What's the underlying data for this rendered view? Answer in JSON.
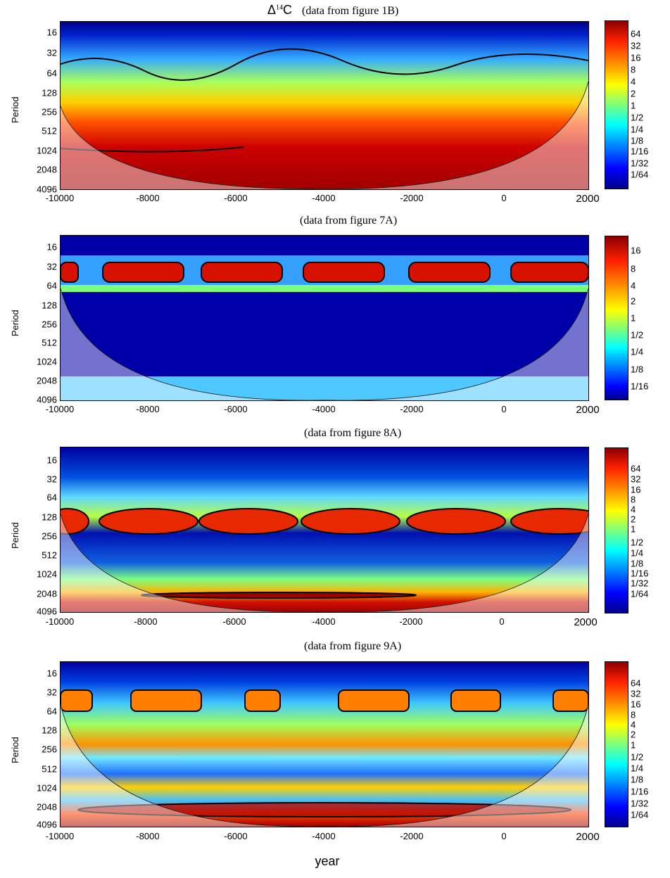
{
  "chart_data": [
    {
      "type": "heatmap",
      "title_prefix": "Δ",
      "title_sup": "14",
      "title_suffix": "C",
      "title": "(data from figure 1B)",
      "ylabel": "Period",
      "xlim": [
        -10000,
        2000
      ],
      "x_ticks": [
        "-10000",
        "-8000",
        "-6000",
        "-4000",
        "-2000",
        "0",
        "2000"
      ],
      "y_ticks": [
        "16",
        "32",
        "64",
        "128",
        "256",
        "512",
        "1024",
        "2048",
        "4096"
      ],
      "colorbar_ticks": [
        "64",
        "32",
        "16",
        "8",
        "4",
        "2",
        "1",
        "1/2",
        "1/4",
        "1/8",
        "1/16",
        "1/32",
        "1/64"
      ]
    },
    {
      "type": "heatmap",
      "title": "(data from figure 7A)",
      "ylabel": "Period",
      "xlim": [
        -10000,
        2000
      ],
      "x_ticks": [
        "-10000",
        "-8000",
        "-6000",
        "-4000",
        "-2000",
        "0",
        "2000"
      ],
      "y_ticks": [
        "16",
        "32",
        "64",
        "128",
        "256",
        "512",
        "1024",
        "2048",
        "4096"
      ],
      "colorbar_ticks": [
        "16",
        "8",
        "4",
        "2",
        "1",
        "1/2",
        "1/4",
        "1/8",
        "1/16"
      ]
    },
    {
      "type": "heatmap",
      "title": "(data from figure 8A)",
      "ylabel": "Period",
      "xlim": [
        -10000,
        2000
      ],
      "x_ticks": [
        "-10000",
        "-8000",
        "-6000",
        "-4000",
        "-2000",
        "0",
        "2000"
      ],
      "y_ticks": [
        "16",
        "32",
        "64",
        "128",
        "256",
        "512",
        "1024",
        "2048",
        "4096"
      ],
      "colorbar_ticks": [
        "64",
        "32",
        "16",
        "8",
        "4",
        "2",
        "1",
        "1/2",
        "1/4",
        "1/8",
        "1/16",
        "1/32",
        "1/64"
      ]
    },
    {
      "type": "heatmap",
      "title": "(data from figure 9A)",
      "ylabel": "Period",
      "xlim": [
        -10000,
        2000
      ],
      "x_ticks": [
        "-10000",
        "-8000",
        "-6000",
        "-4000",
        "-2000",
        "0",
        "2000"
      ],
      "y_ticks": [
        "16",
        "32",
        "64",
        "128",
        "256",
        "512",
        "1024",
        "2048",
        "4096"
      ],
      "colorbar_ticks": [
        "64",
        "32",
        "16",
        "8",
        "4",
        "2",
        "1",
        "1/2",
        "1/4",
        "1/8",
        "1/16",
        "1/32",
        "1/64"
      ]
    }
  ],
  "xlabel": "year",
  "colors": {
    "high": "#8b0000",
    "mid": "#ffff00",
    "low": "#00008b"
  }
}
